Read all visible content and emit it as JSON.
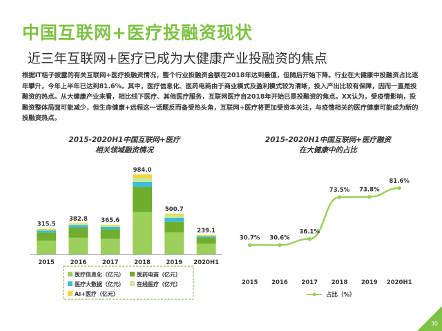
{
  "page": {
    "title": "中国互联网+医疗投融资现状",
    "subtitle": "近三年互联网+医疗已成为大健康产业投融资的焦点",
    "paragraph": "根据IT桔子披露的有关互联网+医疗投融资情况，整个行业投融资金额在2018年达到最值，但随后开始下降。行业在大健康中投融资占比逐年攀升，今年上半年已达到81.6%。其中，医疗信息化、医药电商由于商业模式及盈利模式较为清晰，投入产出比较有保障，因而一直是投融资的热点。从大健康产业来看，相比线下医疗、其他医疗服务，互联网医疗自2018年开始已是投融资的焦点。XX认为，受疫情影响，投融资整体局面可能减少，但生命健康+远程这一话题反而备受热头角，互联网+医疗将更加受资本关注，与疫情相关的医疗健康可能成为新的投融资热点。",
    "page_number": "30"
  },
  "chart_data": [
    {
      "type": "bar",
      "stacked": true,
      "title_line1": "2015-2020H1中国互联网+医疗",
      "title_line2": "相关领域融资情况",
      "categories": [
        "2015",
        "2016",
        "2017",
        "2018",
        "2019",
        "2020H1"
      ],
      "totals": [
        315.5,
        382.8,
        365.6,
        984.0,
        500.7,
        239.1
      ],
      "total_labels": [
        "315.5",
        "382.8",
        "365.6",
        "984.0",
        "500.7",
        "239.1"
      ],
      "series": [
        {
          "name": "医疗信息化（亿元）",
          "color": "#9bd15a",
          "values": [
            170,
            205,
            195,
            520,
            270,
            130
          ]
        },
        {
          "name": "医药电商（亿元）",
          "color": "#6fae2e",
          "values": [
            100,
            125,
            115,
            310,
            130,
            80
          ]
        },
        {
          "name": "医疗大数据（亿元）",
          "color": "#3fbcd6",
          "values": [
            25,
            30,
            30,
            60,
            50,
            15
          ]
        },
        {
          "name": "在线医疗（亿元）",
          "color": "#c8e89a",
          "values": [
            10,
            13,
            15,
            50,
            30,
            8
          ]
        },
        {
          "name": "AI+医疗（亿元）",
          "color": "#f0d63c",
          "values": [
            10.5,
            9.8,
            10.6,
            44,
            20.7,
            6.1
          ]
        }
      ],
      "ylim": [
        0,
        1050
      ],
      "legend_position": "bottom",
      "grid": false
    },
    {
      "type": "line",
      "title_line1": "2015-2020H1中国互联网+医疗融资",
      "title_line2": "在大健康中的占比",
      "categories": [
        "2015",
        "2016",
        "2017",
        "2018",
        "2019",
        "2020H1"
      ],
      "values": [
        30.7,
        30.6,
        36.1,
        73.5,
        73.8,
        81.6
      ],
      "value_labels": [
        "30.7%",
        "30.6%",
        "36.1%",
        "73.5%",
        "73.8%",
        "81.6%"
      ],
      "series_name": "占比（%）",
      "color": "#9bd15a",
      "ylim": [
        0,
        100
      ],
      "legend_position": "bottom",
      "grid": false
    }
  ]
}
